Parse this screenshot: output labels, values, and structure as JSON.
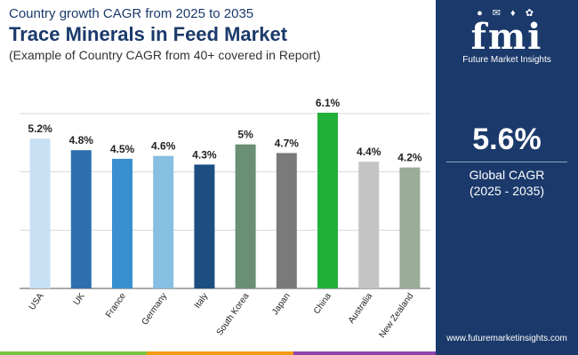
{
  "header": {
    "subtitle": "Country growth CAGR from 2025 to 2035",
    "title": "Trace Minerals in Feed Market",
    "note": "(Example of Country CAGR from 40+ covered in Report)"
  },
  "sidebar": {
    "logo_icons": "● ✉ ♦ ✿",
    "logo_mark": "fmi",
    "logo_text": "Future Market Insights",
    "cagr_value": "5.6%",
    "cagr_label": "Global CAGR",
    "cagr_period": "(2025 - 2035)",
    "website": "www.futuremarketinsights.com"
  },
  "colors": {
    "sidebar_bg": "#1b3a6b",
    "footer": [
      "#7cc242",
      "#f39c12",
      "#8e44ad",
      "#1b3a6b"
    ]
  },
  "chart_data": {
    "type": "bar",
    "title": "Trace Minerals in Feed Market",
    "xlabel": "",
    "ylabel": "",
    "ylim": [
      0,
      7
    ],
    "grid": true,
    "categories": [
      "USA",
      "UK",
      "France",
      "Germany",
      "Italy",
      "South Korea",
      "Japan",
      "China",
      "Australia",
      "New Zealand"
    ],
    "values": [
      5.2,
      4.8,
      4.5,
      4.6,
      4.3,
      5.0,
      4.7,
      6.1,
      4.4,
      4.2
    ],
    "data_labels": [
      "5.2%",
      "4.8%",
      "4.5%",
      "4.6%",
      "4.3%",
      "5%",
      "4.7%",
      "6.1%",
      "4.4%",
      "4.2%"
    ],
    "colors": [
      "#c7e0f4",
      "#2e6fb0",
      "#3a8fd1",
      "#86bfe2",
      "#1c4e82",
      "#6a8f74",
      "#7a7a7a",
      "#22b03a",
      "#c4c4c4",
      "#9bac98"
    ]
  }
}
